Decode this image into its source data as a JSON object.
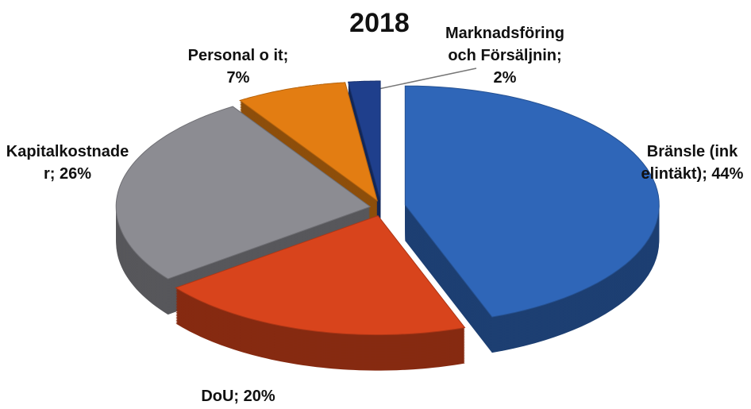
{
  "chart_data": {
    "type": "pie",
    "title": "2018",
    "values": [
      44,
      20,
      26,
      7,
      2
    ],
    "value_labels": [
      [
        "Bränsle (ink",
        "elintäkt); 44%"
      ],
      [
        "DoU; 20%"
      ],
      [
        "Kapitalkostnade",
        "r; 26%"
      ],
      [
        "Personal o it;",
        "7%"
      ],
      [
        "Marknadsföring",
        "och Försäljnin;",
        "2%"
      ]
    ],
    "colors": [
      "#2f66b8",
      "#d8441c",
      "#8c8c92",
      "#e37d12",
      "#1f3f8c"
    ]
  }
}
